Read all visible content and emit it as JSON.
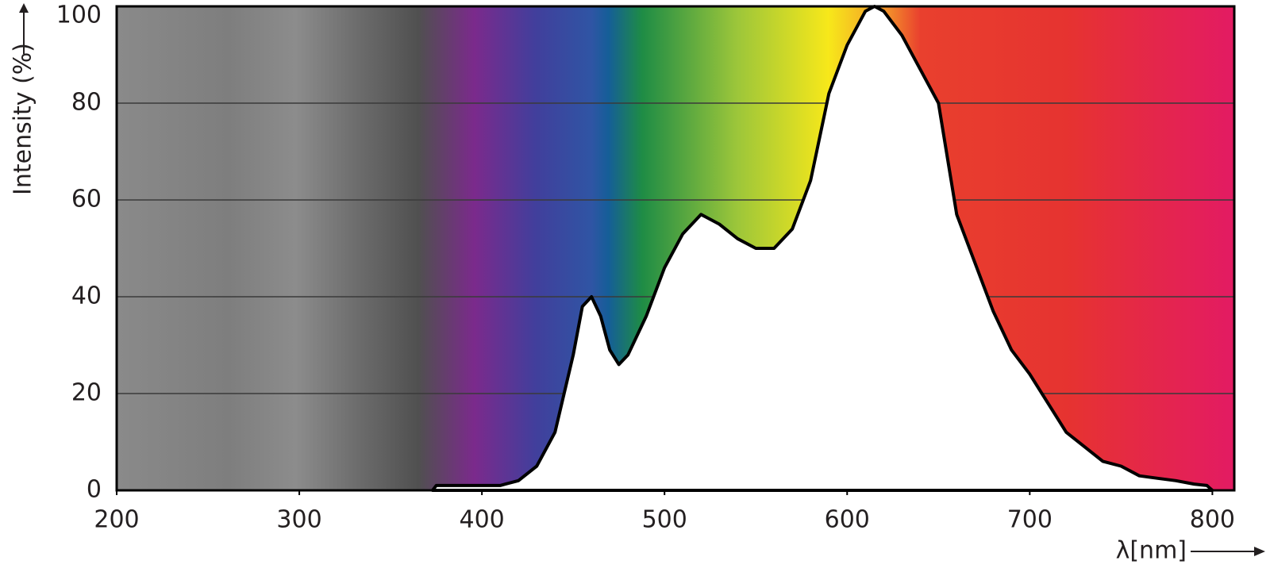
{
  "chart_data": {
    "type": "area",
    "x_label": "λ[nm]",
    "y_label": "Intensity (%)",
    "x": [
      373,
      375,
      410,
      420,
      430,
      440,
      450,
      455,
      460,
      465,
      470,
      475,
      480,
      490,
      500,
      510,
      520,
      530,
      540,
      550,
      560,
      570,
      580,
      590,
      600,
      610,
      615,
      620,
      630,
      640,
      650,
      660,
      670,
      680,
      690,
      700,
      710,
      720,
      730,
      740,
      750,
      760,
      770,
      780,
      790,
      797,
      800
    ],
    "values": [
      0,
      1,
      1,
      2,
      5,
      12,
      28,
      38,
      40,
      36,
      29,
      26,
      28,
      36,
      46,
      53,
      57,
      55,
      52,
      50,
      50,
      54,
      64,
      82,
      92,
      99,
      100,
      99,
      94,
      87,
      80,
      57,
      47,
      37,
      29,
      24,
      18,
      12,
      9,
      6,
      5,
      3,
      2.5,
      2,
      1.3,
      1,
      0
    ],
    "color": "#ffffff",
    "line_color": "#000000",
    "xlim": [
      200,
      812
    ],
    "ylim": [
      0,
      100
    ],
    "xticks": [
      200,
      300,
      400,
      500,
      600,
      700,
      800
    ],
    "yticks": [
      0,
      20,
      40,
      60,
      80,
      100
    ],
    "grid": true
  }
}
